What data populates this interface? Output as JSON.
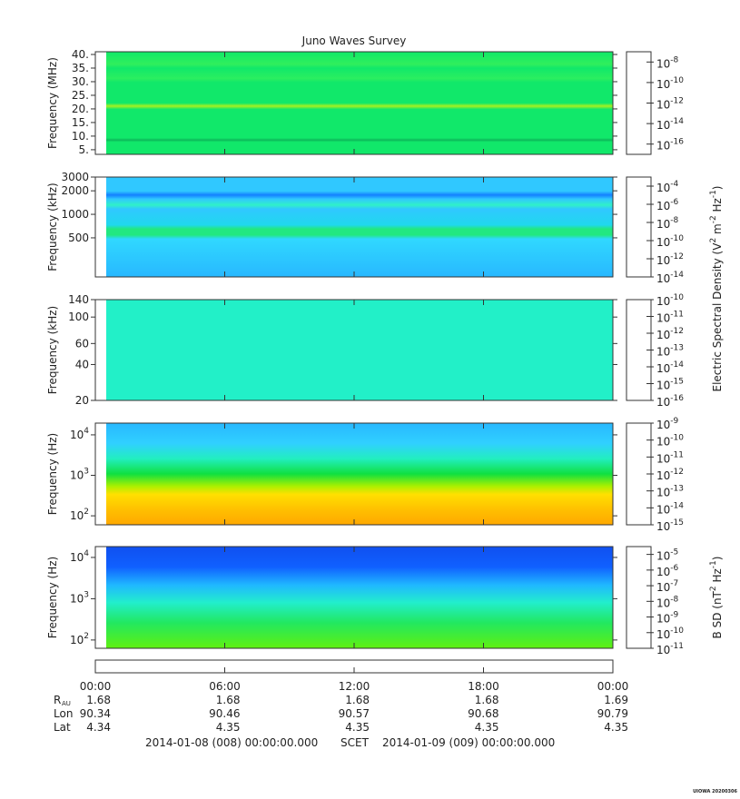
{
  "chart_data": [
    {
      "type": "spectrogram",
      "title": "Juno Waves Survey",
      "ylabel": "Frequency (MHz)",
      "log": false,
      "ylim": [
        3.3,
        41
      ],
      "yticks": [
        {
          "value": 5,
          "label": "5."
        },
        {
          "value": 10,
          "label": "10."
        },
        {
          "value": 15,
          "label": "15."
        },
        {
          "value": 20,
          "label": "20."
        },
        {
          "value": 25,
          "label": "25."
        },
        {
          "value": 30,
          "label": "30."
        },
        {
          "value": 35,
          "label": "35."
        },
        {
          "value": 40,
          "label": "40."
        }
      ],
      "colorbar": {
        "clim": [
          -17,
          -7
        ],
        "ticks": [
          {
            "value": -8,
            "label": "10^-8"
          },
          {
            "value": -10,
            "label": "10^-10"
          },
          {
            "value": -12,
            "label": "10^-12"
          },
          {
            "value": -14,
            "label": "10^-14"
          },
          {
            "value": -16,
            "label": "10^-16"
          }
        ]
      }
    },
    {
      "type": "spectrogram",
      "ylabel": "Frequency (kHz)",
      "log": true,
      "ylim": [
        158,
        3000
      ],
      "yticks": [
        500,
        1000,
        2000,
        3000
      ],
      "colorbar": {
        "clim": [
          -14,
          -3
        ],
        "ticks": [
          {
            "value": -4,
            "label": "10^-4"
          },
          {
            "value": -6,
            "label": "10^-6"
          },
          {
            "value": -8,
            "label": "10^-8"
          },
          {
            "value": -10,
            "label": "10^-10"
          },
          {
            "value": -12,
            "label": "10^-12"
          },
          {
            "value": -14,
            "label": "10^-14"
          }
        ]
      }
    },
    {
      "type": "spectrogram",
      "ylabel": "Frequency (kHz)",
      "log": true,
      "ylim": [
        20,
        140
      ],
      "yticks": [
        20,
        40,
        60,
        100,
        140
      ],
      "colorbar": {
        "clim": [
          -16,
          -10
        ],
        "ticks": [
          {
            "value": -10,
            "label": "10^-10"
          },
          {
            "value": -11,
            "label": "10^-11"
          },
          {
            "value": -12,
            "label": "10^-12"
          },
          {
            "value": -13,
            "label": "10^-13"
          },
          {
            "value": -14,
            "label": "10^-14"
          },
          {
            "value": -15,
            "label": "10^-15"
          },
          {
            "value": -16,
            "label": "10^-16"
          }
        ]
      }
    },
    {
      "type": "spectrogram",
      "ylabel": "Frequency (Hz)",
      "log": true,
      "ylim": [
        60,
        19500
      ],
      "yticks": [
        {
          "value": 100,
          "label": "10^2"
        },
        {
          "value": 1000,
          "label": "10^3"
        },
        {
          "value": 10000,
          "label": "10^4"
        }
      ],
      "colorbar": {
        "clim": [
          -15,
          -9
        ],
        "ticks": [
          {
            "value": -9,
            "label": "10^-9"
          },
          {
            "value": -10,
            "label": "10^-10"
          },
          {
            "value": -11,
            "label": "10^-11"
          },
          {
            "value": -12,
            "label": "10^-12"
          },
          {
            "value": -13,
            "label": "10^-13"
          },
          {
            "value": -14,
            "label": "10^-14"
          },
          {
            "value": -15,
            "label": "10^-15"
          }
        ]
      }
    },
    {
      "type": "spectrogram",
      "ylabel": "Frequency (Hz)",
      "log": true,
      "ylim": [
        63,
        18300
      ],
      "yticks": [
        {
          "value": 100,
          "label": "10^2"
        },
        {
          "value": 1000,
          "label": "10^3"
        },
        {
          "value": 10000,
          "label": "10^4"
        }
      ],
      "colorbar": {
        "clim": [
          -11,
          -4.5
        ],
        "ticks": [
          {
            "value": -5,
            "label": "10^-5"
          },
          {
            "value": -6,
            "label": "10^-6"
          },
          {
            "value": -7,
            "label": "10^-7"
          },
          {
            "value": -8,
            "label": "10^-8"
          },
          {
            "value": -9,
            "label": "10^-9"
          },
          {
            "value": -10,
            "label": "10^-10"
          },
          {
            "value": -11,
            "label": "10^-11"
          }
        ]
      }
    }
  ],
  "colorbar_labels": [
    "Electric Spectral Density (V^2 m^-2 Hz^-1)",
    "B SD (nT^2 Hz^-1)"
  ],
  "time_axis": {
    "xlim": [
      0,
      24
    ],
    "xticks": [
      {
        "value": 0,
        "label": "00:00"
      },
      {
        "value": 6,
        "label": "06:00"
      },
      {
        "value": 12,
        "label": "12:00"
      },
      {
        "value": 18,
        "label": "18:00"
      },
      {
        "value": 24,
        "label": "00:00"
      }
    ]
  },
  "ephemeris": [
    {
      "label": "R",
      "subscript": "AU",
      "values": [
        "1.68",
        "1.68",
        "1.68",
        "1.68",
        "1.69"
      ]
    },
    {
      "label": "Lon",
      "values": [
        "90.34",
        "90.46",
        "90.57",
        "90.68",
        "90.79"
      ]
    },
    {
      "label": "Lat",
      "values": [
        "4.34",
        "4.35",
        "4.35",
        "4.35",
        "4.35"
      ]
    }
  ],
  "footer": {
    "start": "2014-01-08 (008) 00:00:00.000",
    "frame": "SCET",
    "end": "2014-01-09 (009) 00:00:00.000"
  },
  "watermark": "UIOWA 20200306"
}
